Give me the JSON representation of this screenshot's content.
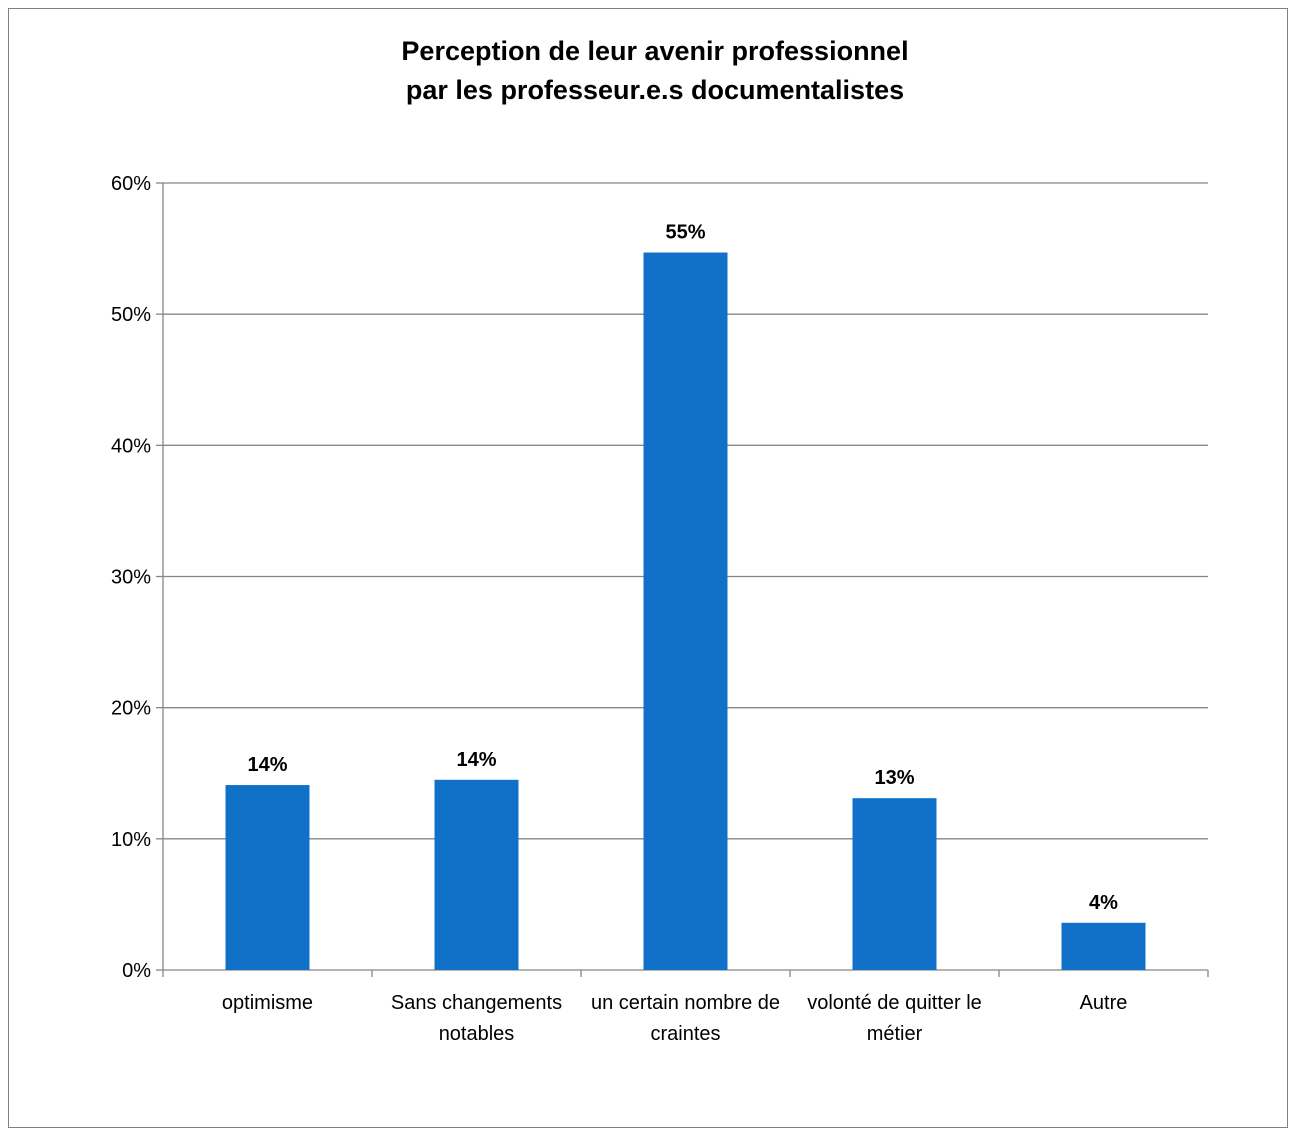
{
  "chart_data": {
    "type": "bar",
    "title_lines": [
      "Perception de leur avenir professionnel",
      "par les professeur.e.s documentalistes"
    ],
    "categories": [
      [
        "optimisme"
      ],
      [
        "Sans changements",
        "notables"
      ],
      [
        "un certain nombre de",
        "craintes"
      ],
      [
        "volonté de quitter le",
        "métier"
      ],
      [
        "Autre"
      ]
    ],
    "values": [
      14.1,
      14.5,
      54.7,
      13.1,
      3.6
    ],
    "data_labels": [
      "14%",
      "14%",
      "55%",
      "13%",
      "4%"
    ],
    "ylim": [
      0,
      60
    ],
    "yticks": [
      0,
      10,
      20,
      30,
      40,
      50,
      60
    ],
    "ytick_labels": [
      "0%",
      "10%",
      "20%",
      "30%",
      "40%",
      "50%",
      "60%"
    ],
    "grid": true,
    "legend": "none",
    "bar_color": "#1170c8",
    "xlabel": "",
    "ylabel": ""
  }
}
